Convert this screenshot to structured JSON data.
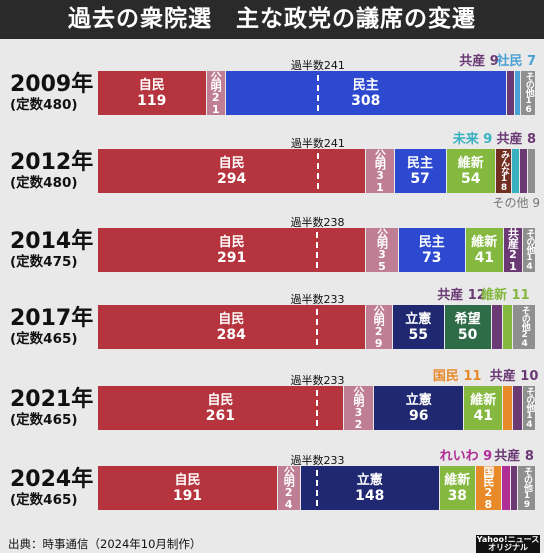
{
  "title": "過去の衆院選　主な政党の議席の変遷",
  "footer": {
    "source": "出典：時事通信（2024年10月制作）",
    "credit": "Yahoo!ニュース オリジナル"
  },
  "colors": {
    "自民": "#b6343d",
    "公明": "#bf7e93",
    "民主": "#2c49d0",
    "立憲": "#1f2870",
    "維新": "#84b83f",
    "希望": "#2e6b47",
    "国民": "#e8892a",
    "みんな": "#712f22",
    "共産": "#6b3a75",
    "社民": "#4aa1d3",
    "未来": "#3ab1c0",
    "れいわ": "#b02e96",
    "その他": "#8f8f8f"
  },
  "chart_data": {
    "type": "bar",
    "orientation": "horizontal-stacked",
    "title": "過去の衆院選　主な政党の議席の変遷",
    "rows": [
      {
        "year": "2009年",
        "seats_label": "(定数480)",
        "total": 480,
        "majority_label": "過半数241",
        "majority": 241,
        "segments": [
          {
            "party": "自民",
            "label": "自民",
            "value": 119,
            "layout": "h"
          },
          {
            "party": "公明",
            "label": "公明",
            "value": 21,
            "layout": "v"
          },
          {
            "party": "民主",
            "label": "民主",
            "value": 308,
            "layout": "h"
          },
          {
            "party": "共産",
            "label": "",
            "value": 9,
            "layout": "none"
          },
          {
            "party": "社民",
            "label": "",
            "value": 7,
            "layout": "none"
          },
          {
            "party": "その他",
            "label": "その他",
            "value": 16,
            "layout": "tiny"
          }
        ],
        "external": [
          {
            "text": "共産 9",
            "party": "共産",
            "pos": "above",
            "at": 0.87
          },
          {
            "text": "社民 7",
            "party": "社民",
            "pos": "above",
            "at": 0.955
          }
        ]
      },
      {
        "year": "2012年",
        "seats_label": "(定数480)",
        "total": 480,
        "majority_label": "過半数241",
        "majority": 241,
        "segments": [
          {
            "party": "自民",
            "label": "自民",
            "value": 294,
            "layout": "h"
          },
          {
            "party": "公明",
            "label": "公明",
            "value": 31,
            "layout": "v"
          },
          {
            "party": "民主",
            "label": "民主",
            "value": 57,
            "layout": "h"
          },
          {
            "party": "維新",
            "label": "維新",
            "value": 54,
            "layout": "h"
          },
          {
            "party": "みんな",
            "label": "みんな",
            "value": 18,
            "layout": "vsmall"
          },
          {
            "party": "未来",
            "label": "",
            "value": 9,
            "layout": "none"
          },
          {
            "party": "共産",
            "label": "",
            "value": 8,
            "layout": "none"
          },
          {
            "party": "その他",
            "label": "",
            "value": 9,
            "layout": "none"
          }
        ],
        "external": [
          {
            "text": "未来 9",
            "party": "未来",
            "pos": "above",
            "at": 0.855
          },
          {
            "text": "共産 8",
            "party": "共産",
            "pos": "above",
            "at": 0.955
          },
          {
            "text": "その他 9",
            "party": "その他",
            "pos": "below",
            "at": 0.955
          }
        ]
      },
      {
        "year": "2014年",
        "seats_label": "(定数475)",
        "total": 475,
        "majority_label": "過半数238",
        "majority": 238,
        "segments": [
          {
            "party": "自民",
            "label": "自民",
            "value": 291,
            "layout": "h"
          },
          {
            "party": "公明",
            "label": "公明",
            "value": 35,
            "layout": "v"
          },
          {
            "party": "民主",
            "label": "民主",
            "value": 73,
            "layout": "h"
          },
          {
            "party": "維新",
            "label": "維新",
            "value": 41,
            "layout": "h"
          },
          {
            "party": "共産",
            "label": "共産",
            "value": 21,
            "layout": "v"
          },
          {
            "party": "その他",
            "label": "その他",
            "value": 14,
            "layout": "tiny"
          }
        ],
        "external": []
      },
      {
        "year": "2017年",
        "seats_label": "(定数465)",
        "total": 465,
        "majority_label": "過半数233",
        "majority": 233,
        "segments": [
          {
            "party": "自民",
            "label": "自民",
            "value": 284,
            "layout": "h"
          },
          {
            "party": "公明",
            "label": "公明",
            "value": 29,
            "layout": "v"
          },
          {
            "party": "立憲",
            "label": "立憲",
            "value": 55,
            "layout": "h"
          },
          {
            "party": "希望",
            "label": "希望",
            "value": 50,
            "layout": "h"
          },
          {
            "party": "共産",
            "label": "",
            "value": 12,
            "layout": "none"
          },
          {
            "party": "維新",
            "label": "",
            "value": 11,
            "layout": "none"
          },
          {
            "party": "その他",
            "label": "その他",
            "value": 24,
            "layout": "tiny"
          }
        ],
        "external": [
          {
            "text": "共産 12",
            "party": "共産",
            "pos": "above",
            "at": 0.83
          },
          {
            "text": "維新 11",
            "party": "維新",
            "pos": "above",
            "at": 0.93
          }
        ]
      },
      {
        "year": "2021年",
        "seats_label": "(定数465)",
        "total": 465,
        "majority_label": "過半数233",
        "majority": 233,
        "segments": [
          {
            "party": "自民",
            "label": "自民",
            "value": 261,
            "layout": "h"
          },
          {
            "party": "公明",
            "label": "公明",
            "value": 32,
            "layout": "v"
          },
          {
            "party": "立憲",
            "label": "立憲",
            "value": 96,
            "layout": "h"
          },
          {
            "party": "維新",
            "label": "維新",
            "value": 41,
            "layout": "h"
          },
          {
            "party": "国民",
            "label": "",
            "value": 11,
            "layout": "none"
          },
          {
            "party": "共産",
            "label": "",
            "value": 10,
            "layout": "none"
          },
          {
            "party": "その他",
            "label": "その他",
            "value": 14,
            "layout": "tiny"
          }
        ],
        "external": [
          {
            "text": "国民 11",
            "party": "国民",
            "pos": "above",
            "at": 0.82
          },
          {
            "text": "共産 10",
            "party": "共産",
            "pos": "above",
            "at": 0.95
          }
        ]
      },
      {
        "year": "2024年",
        "seats_label": "(定数465)",
        "total": 465,
        "majority_label": "過半数233",
        "majority": 233,
        "segments": [
          {
            "party": "自民",
            "label": "自民",
            "value": 191,
            "layout": "h"
          },
          {
            "party": "公明",
            "label": "公明",
            "value": 24,
            "layout": "v"
          },
          {
            "party": "立憲",
            "label": "立憲",
            "value": 148,
            "layout": "h"
          },
          {
            "party": "維新",
            "label": "維新",
            "value": 38,
            "layout": "h"
          },
          {
            "party": "国民",
            "label": "国民",
            "value": 28,
            "layout": "v"
          },
          {
            "party": "れいわ",
            "label": "",
            "value": 9,
            "layout": "none"
          },
          {
            "party": "共産",
            "label": "",
            "value": 8,
            "layout": "none"
          },
          {
            "party": "その他",
            "label": "その他",
            "value": 19,
            "layout": "tiny"
          }
        ],
        "external": [
          {
            "text": "れいわ 9",
            "party": "れいわ",
            "pos": "above",
            "at": 0.84
          },
          {
            "text": "共産 8",
            "party": "共産",
            "pos": "above",
            "at": 0.95
          }
        ]
      }
    ]
  }
}
